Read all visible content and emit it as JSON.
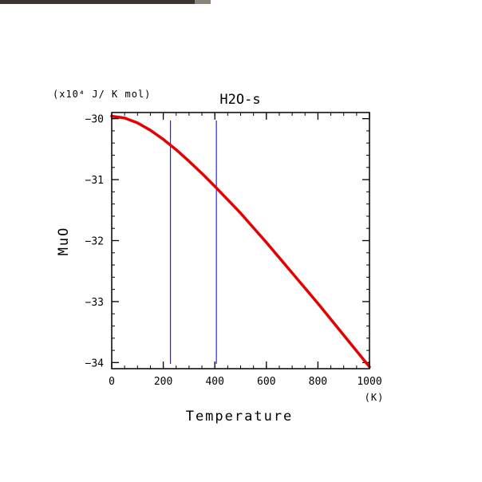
{
  "chart_data": {
    "type": "line",
    "title": "H2O-s",
    "xlabel": "Temperature",
    "x_unit": "(K)",
    "ylabel": "MuO",
    "y_unit": "(x10⁴ J/ K mol)",
    "xlim": [
      0,
      1000
    ],
    "ylim": [
      -34.1,
      -29.9
    ],
    "x_ticks": [
      0,
      200,
      400,
      600,
      800,
      1000
    ],
    "y_ticks": [
      -30,
      -31,
      -32,
      -33,
      -34
    ],
    "x_tick_labels": [
      "0",
      "200",
      "400",
      "600",
      "800",
      "1000"
    ],
    "y_tick_labels": [
      "−30",
      "−31",
      "−32",
      "−33",
      "−34"
    ],
    "series": [
      {
        "color": "#e60000",
        "x": [
          0,
          50,
          100,
          150,
          200,
          250,
          300,
          350,
          400,
          450,
          500,
          600,
          700,
          800,
          900,
          1000
        ],
        "y": [
          -29.96,
          -29.99,
          -30.07,
          -30.19,
          -30.34,
          -30.51,
          -30.7,
          -30.9,
          -31.11,
          -31.33,
          -31.55,
          -32.03,
          -32.53,
          -33.03,
          -33.55,
          -34.07
        ]
      }
    ],
    "vertical_lines": [
      {
        "x": 228,
        "color": "#0000cc"
      },
      {
        "x": 406,
        "color": "#0000cc"
      }
    ],
    "grid": false
  }
}
